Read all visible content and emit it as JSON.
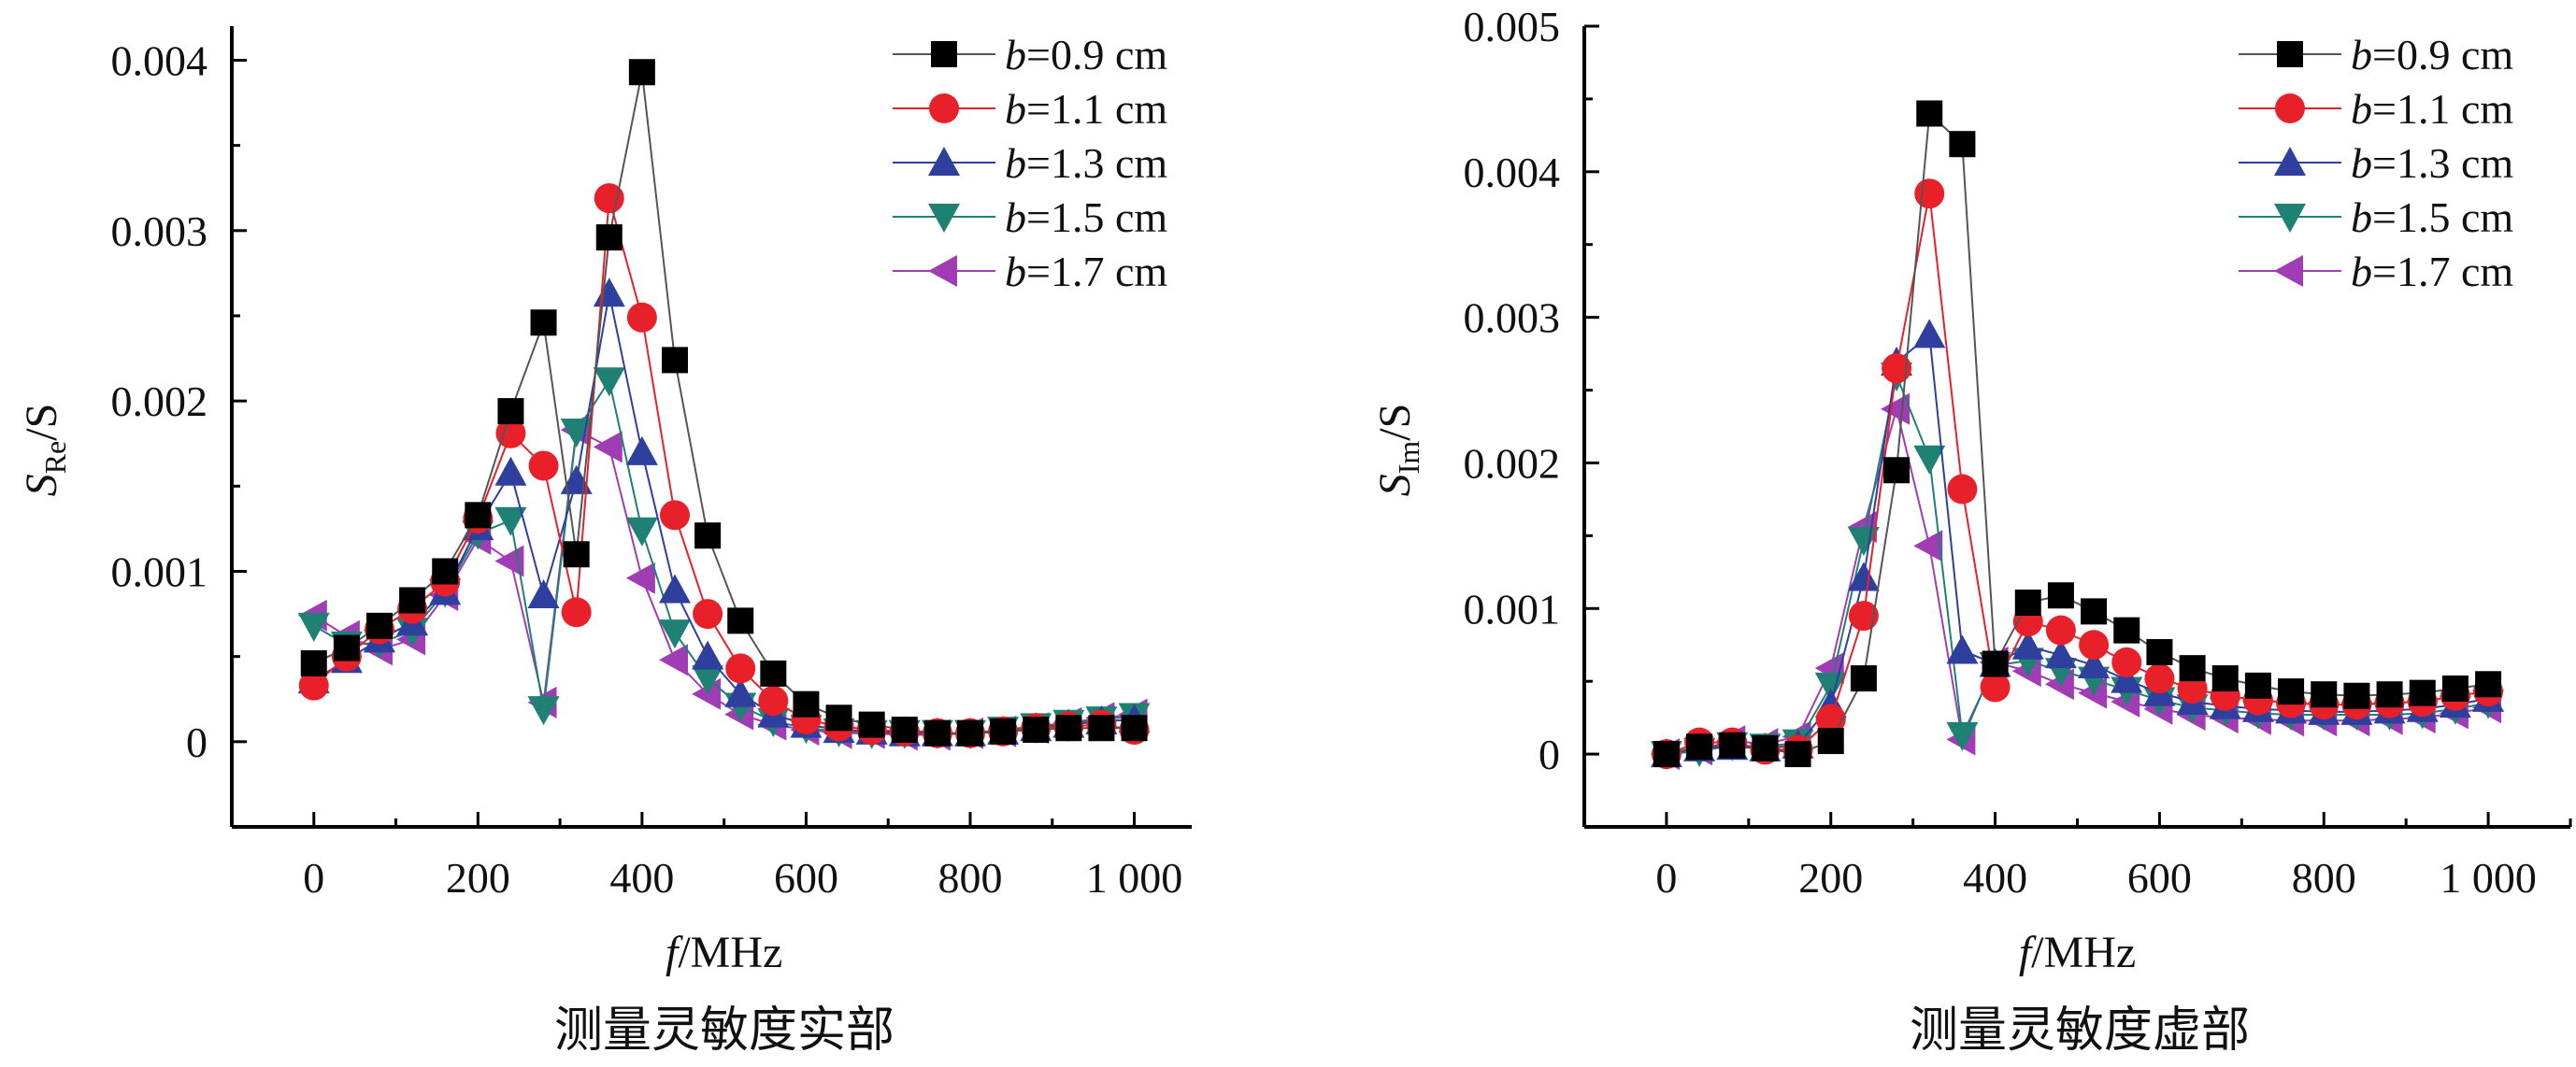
{
  "chart_data": [
    {
      "type": "line",
      "title": "",
      "caption": "测量灵敏度实部",
      "xlabel": "f/MHz",
      "ylabel": "S_Re/S",
      "ylabel_main": "S",
      "ylabel_sub": "Re",
      "ylabel_rest": "/S",
      "xlim": [
        -100,
        1070
      ],
      "ylim": [
        -0.0005,
        0.0042
      ],
      "x_ticks": [
        0,
        200,
        400,
        600,
        800,
        1000
      ],
      "x_tick_labels": [
        "0",
        "200",
        "400",
        "600",
        "800",
        "1 000"
      ],
      "y_ticks": [
        0,
        0.001,
        0.002,
        0.003,
        0.004
      ],
      "y_tick_labels": [
        "0",
        "0.001",
        "0.002",
        "0.003",
        "0.004"
      ],
      "grid": false,
      "legend_position": "top-right",
      "x": [
        0,
        40,
        80,
        120,
        160,
        200,
        240,
        280,
        320,
        360,
        400,
        440,
        480,
        520,
        560,
        600,
        640,
        680,
        720,
        760,
        800,
        840,
        880,
        920,
        960,
        1000
      ],
      "series": [
        {
          "name": "b=0.9 cm",
          "values": [
            0.00046,
            0.00055,
            0.00068,
            0.00083,
            0.001,
            0.00133,
            0.00194,
            0.00246,
            0.0011,
            0.00296,
            0.00393,
            0.00224,
            0.00121,
            0.00071,
            0.0004,
            0.00022,
            0.00014,
            0.0001,
            7e-05,
            5e-05,
            5e-05,
            6e-05,
            7e-05,
            8e-05,
            8e-05,
            8e-05
          ]
        },
        {
          "name": "b=1.1 cm",
          "values": [
            0.00033,
            0.0005,
            0.00066,
            0.00078,
            0.00094,
            0.00131,
            0.00181,
            0.00162,
            0.00076,
            0.00319,
            0.00249,
            0.00133,
            0.00075,
            0.00043,
            0.00024,
            0.00013,
            9e-05,
            7e-05,
            6e-05,
            5e-05,
            5e-05,
            6e-05,
            8e-05,
            9e-05,
            0.0001,
            7e-05
          ]
        },
        {
          "name": "b=1.3 cm",
          "values": [
            0.00036,
            0.00048,
            0.0006,
            0.0007,
            0.00088,
            0.00126,
            0.00158,
            0.00086,
            0.00153,
            0.00263,
            0.0017,
            0.00089,
            0.0005,
            0.00028,
            0.00016,
            0.0001,
            7e-05,
            6e-05,
            5e-05,
            5e-05,
            5e-05,
            6e-05,
            8e-05,
            0.0001,
            0.00012,
            0.00013
          ]
        },
        {
          "name": "b=1.5 cm",
          "values": [
            0.00068,
            0.00057,
            0.00058,
            0.00065,
            0.00088,
            0.00122,
            0.0013,
            0.00019,
            0.00182,
            0.00212,
            0.00124,
            0.00064,
            0.00037,
            0.00021,
            0.00012,
            8e-05,
            6e-05,
            5e-05,
            5e-05,
            5e-05,
            5e-05,
            7e-05,
            9e-05,
            0.00011,
            0.00013,
            0.00015
          ]
        },
        {
          "name": "b=1.7 cm",
          "values": [
            0.00074,
            0.00062,
            0.00054,
            0.0006,
            0.00086,
            0.00119,
            0.00106,
            0.00023,
            0.00183,
            0.00173,
            0.00096,
            0.00048,
            0.00028,
            0.00016,
            0.0001,
            7e-05,
            5e-05,
            5e-05,
            4e-05,
            4e-05,
            5e-05,
            6e-05,
            8e-05,
            0.00011,
            0.00014,
            0.00016
          ]
        }
      ]
    },
    {
      "type": "line",
      "title": "",
      "caption": "测量灵敏度虚部",
      "xlabel": "f/MHz",
      "ylabel": "S_Im/S",
      "ylabel_main": "S",
      "ylabel_sub": "Im",
      "ylabel_rest": "/S",
      "xlim": [
        -100,
        1100
      ],
      "ylim": [
        -0.0005,
        0.005
      ],
      "x_ticks": [
        0,
        200,
        400,
        600,
        800,
        1000
      ],
      "x_tick_labels": [
        "0",
        "200",
        "400",
        "600",
        "800",
        "1 000"
      ],
      "y_ticks": [
        0,
        0.001,
        0.002,
        0.003,
        0.004,
        0.005
      ],
      "y_tick_labels": [
        "0",
        "0.001",
        "0.002",
        "0.003",
        "0.004",
        "0.005"
      ],
      "grid": false,
      "legend_position": "top-right",
      "x": [
        0,
        40,
        80,
        120,
        160,
        200,
        240,
        280,
        320,
        360,
        400,
        440,
        480,
        520,
        560,
        600,
        640,
        680,
        720,
        760,
        800,
        840,
        880,
        920,
        960,
        1000
      ],
      "series": [
        {
          "name": "b=0.9 cm",
          "values": [
            0.0,
            5e-05,
            6e-05,
            4e-05,
            0.0,
            9e-05,
            0.00052,
            0.00195,
            0.0044,
            0.00419,
            0.00062,
            0.00104,
            0.00109,
            0.00098,
            0.00085,
            0.0007,
            0.00059,
            0.00052,
            0.00047,
            0.00043,
            0.00041,
            0.0004,
            0.00041,
            0.00042,
            0.00045,
            0.00048
          ]
        },
        {
          "name": "b=1.1 cm",
          "values": [
            0.0,
            8e-05,
            8e-05,
            3e-05,
            3e-05,
            0.00024,
            0.00095,
            0.00265,
            0.00385,
            0.00182,
            0.00046,
            0.00091,
            0.00085,
            0.00075,
            0.00063,
            0.00052,
            0.00045,
            0.0004,
            0.00037,
            0.00035,
            0.00034,
            0.00034,
            0.00035,
            0.00036,
            0.0004,
            0.00043
          ]
        },
        {
          "name": "b=1.3 cm",
          "values": [
            0.0,
            4e-05,
            5e-05,
            4e-05,
            6e-05,
            0.00034,
            0.00121,
            0.00269,
            0.00288,
            0.00071,
            0.00062,
            0.00074,
            0.00068,
            0.00061,
            0.00051,
            0.00042,
            0.00036,
            0.00033,
            0.00031,
            0.0003,
            0.00029,
            0.00029,
            0.0003,
            0.00031,
            0.00034,
            0.00038
          ]
        },
        {
          "name": "b=1.5 cm",
          "values": [
            0.0,
            2e-05,
            6e-05,
            5e-05,
            8e-05,
            0.00047,
            0.00147,
            0.0026,
            0.00203,
            0.00013,
            0.00061,
            0.00064,
            0.00057,
            0.00051,
            0.00044,
            0.00037,
            0.00032,
            0.0003,
            0.00028,
            0.00027,
            0.00027,
            0.00027,
            0.00027,
            0.00028,
            0.00031,
            0.00035
          ]
        },
        {
          "name": "b=1.7 cm",
          "values": [
            0.0,
            3e-05,
            9e-05,
            7e-05,
            0.00012,
            0.00059,
            0.00156,
            0.00237,
            0.00143,
            0.0001,
            0.00063,
            0.00057,
            0.00048,
            0.00042,
            0.00036,
            0.00031,
            0.00027,
            0.00025,
            0.00024,
            0.00023,
            0.00023,
            0.00023,
            0.00024,
            0.00025,
            0.00028,
            0.00032
          ]
        }
      ]
    }
  ],
  "series_styles": [
    {
      "color": "#000000",
      "line": "#555555",
      "marker": "square"
    },
    {
      "color": "#e8202a",
      "line": "#e8202a",
      "marker": "circle"
    },
    {
      "color": "#2e3f9e",
      "line": "#2e3f9e",
      "marker": "triangle-up"
    },
    {
      "color": "#1f8074",
      "line": "#1f8074",
      "marker": "triangle-down"
    },
    {
      "color": "#a03cb4",
      "line": "#a03cb4",
      "marker": "triangle-left"
    }
  ],
  "legend_labels": [
    {
      "var": "b",
      "rest": "=0.9 cm"
    },
    {
      "var": "b",
      "rest": "=1.1 cm"
    },
    {
      "var": "b",
      "rest": "=1.3 cm"
    },
    {
      "var": "b",
      "rest": "=1.5 cm"
    },
    {
      "var": "b",
      "rest": "=1.7 cm"
    }
  ],
  "xlabel_parts": {
    "var": "f",
    "rest": "/MHz"
  }
}
